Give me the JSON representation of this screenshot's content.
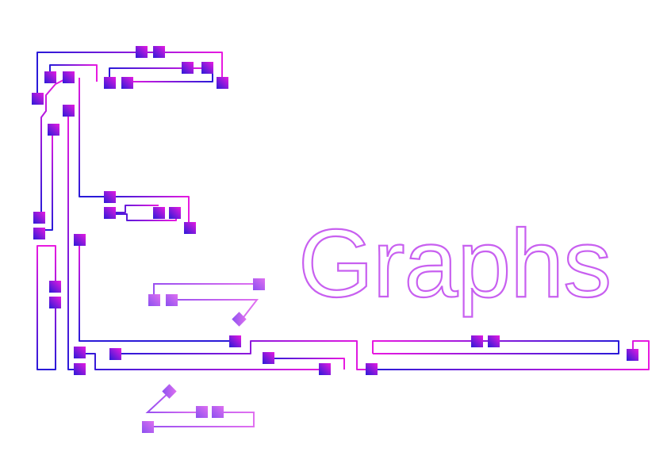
{
  "logo": {
    "wordmark": "Graphs",
    "colors": {
      "blue": "#2a1ad8",
      "magenta": "#e81ae0",
      "violet": "#8a2ae8",
      "light_violet": "#b060f0",
      "wordmark_outline": "#c860f0"
    }
  }
}
